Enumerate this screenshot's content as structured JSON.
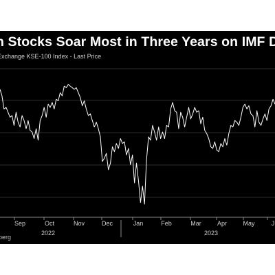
{
  "chart_data": {
    "type": "line",
    "title": "n Stocks Soar Most in Three Years on IMF Deal",
    "subtitle": "Exchange KSE-100 Index - Last Price",
    "source": "berg",
    "month_labels": [
      "Sep",
      "Oct",
      "Nov",
      "Dec",
      "Jan",
      "Feb",
      "Mar",
      "Apr",
      "May",
      "J"
    ],
    "year_labels": [
      "2022",
      "2023"
    ],
    "grid": true,
    "series": [
      {
        "values": [
          41.5,
          41.1,
          40.3,
          40.4,
          40.1,
          39.8,
          39.9,
          39.3,
          40.1,
          39.5,
          39.2,
          39.9,
          39.6,
          39.1,
          39.6,
          39.0,
          38.9,
          38.5,
          39.1,
          38.4,
          39.6,
          39.9,
          40.4,
          39.8,
          40.6,
          40.4,
          40.7,
          40.3,
          40.9,
          40.8,
          41.3,
          41.1,
          41.7,
          41.6,
          41.8,
          41.7,
          41.6,
          41.5,
          41.6,
          41.3,
          41.0,
          40.5,
          40.8,
          40.3,
          39.9,
          40.0,
          39.6,
          39.2,
          39.5,
          39.1,
          38.6,
          37.1,
          37.3,
          37.6,
          36.6,
          37.0,
          38.0,
          37.7,
          38.2,
          37.9,
          38.5,
          38.2,
          38.3,
          37.5,
          37.9,
          36.9,
          37.5,
          35.8,
          37.0,
          35.9,
          34.6,
          35.6,
          34.5,
          37.2,
          38.6,
          38.4,
          39.3,
          38.9,
          38.4,
          39.2,
          38.5,
          38.9,
          38.5,
          39.3,
          39.2,
          40.3,
          40.7,
          40.2,
          40.1,
          39.1,
          40.1,
          39.8,
          39.2,
          39.8,
          40.4,
          39.7,
          40.0,
          40.4,
          40.1,
          40.2,
          39.4,
          39.8,
          39.0,
          38.8,
          38.5,
          38.0,
          37.9,
          38.3,
          37.8,
          37.7,
          38.2,
          38.0,
          38.5,
          38.1,
          38.8,
          39.3,
          39.2,
          39.6,
          39.5,
          39.3,
          39.8,
          40.4,
          40.6,
          40.3,
          40.5,
          40.0,
          39.9,
          39.2,
          40.2,
          39.5,
          39.3,
          39.7,
          40.0,
          39.6,
          40.3,
          40.5,
          40.9,
          40.6
        ]
      }
    ]
  }
}
